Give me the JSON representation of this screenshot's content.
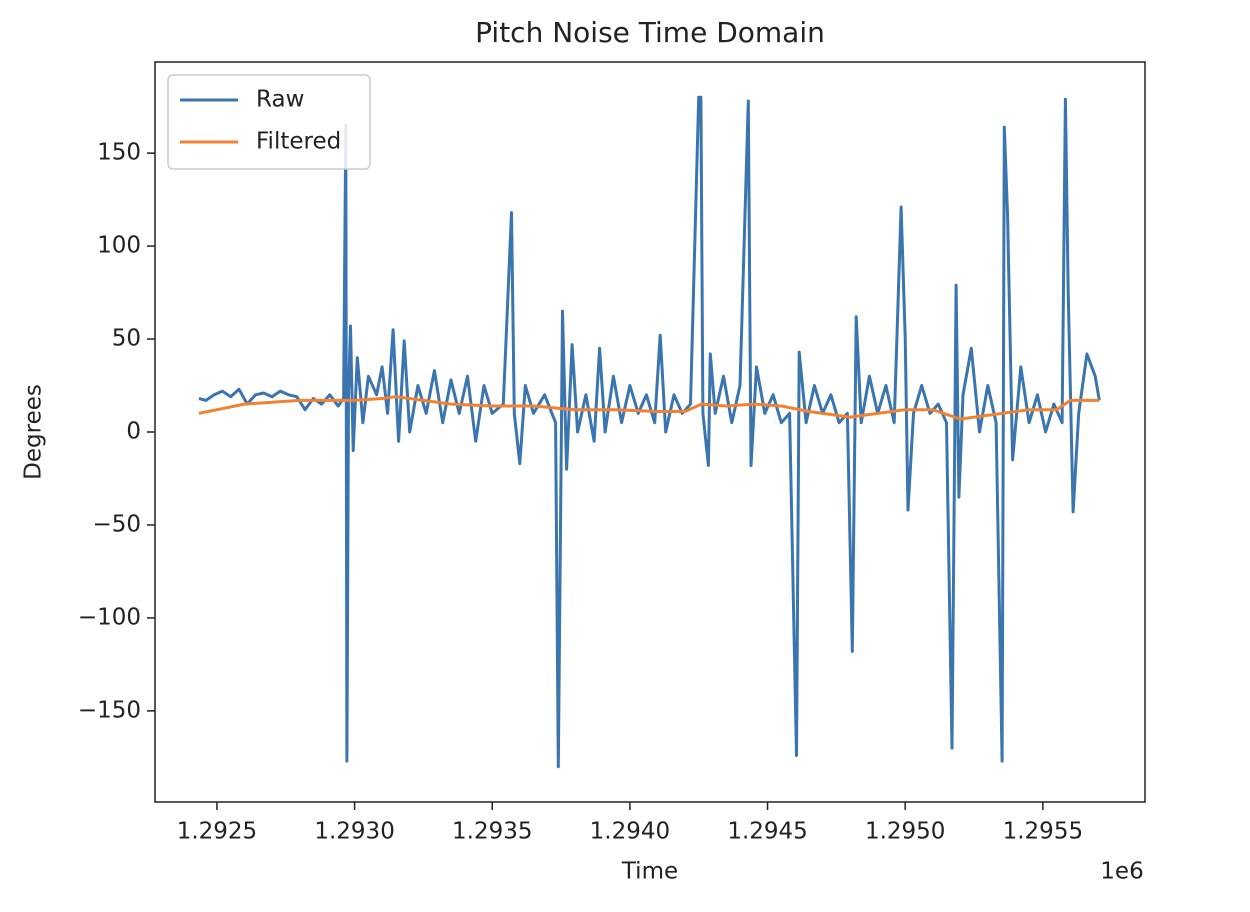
{
  "chart_data": {
    "type": "line",
    "title": "Pitch Noise Time Domain",
    "x_label": "Time",
    "y_label": "Degrees",
    "x_offset_label": "1e6",
    "xlim": [
      1292275,
      1295871
    ],
    "ylim": [
      -199,
      199
    ],
    "xticks": [
      {
        "value": 1292500,
        "label": "1.2925"
      },
      {
        "value": 1293000,
        "label": "1.2930"
      },
      {
        "value": 1293500,
        "label": "1.2935"
      },
      {
        "value": 1294000,
        "label": "1.2940"
      },
      {
        "value": 1294500,
        "label": "1.2945"
      },
      {
        "value": 1295000,
        "label": "1.2950"
      },
      {
        "value": 1295500,
        "label": "1.2955"
      }
    ],
    "yticks": [
      {
        "value": -150,
        "label": "−150"
      },
      {
        "value": -100,
        "label": "−100"
      },
      {
        "value": -50,
        "label": "−50"
      },
      0,
      50,
      100,
      150
    ],
    "legend": "upper left",
    "series": [
      {
        "name": "Raw",
        "color": "#3a75b0",
        "x": [
          1292435,
          1292460,
          1292490,
          1292520,
          1292550,
          1292580,
          1292610,
          1292640,
          1292670,
          1292700,
          1292730,
          1292760,
          1292790,
          1292820,
          1292850,
          1292880,
          1292910,
          1292940,
          1292960,
          1292968,
          1292972,
          1292978,
          1292985,
          1292995,
          1293010,
          1293030,
          1293050,
          1293080,
          1293100,
          1293120,
          1293140,
          1293160,
          1293180,
          1293200,
          1293230,
          1293260,
          1293290,
          1293320,
          1293350,
          1293380,
          1293410,
          1293440,
          1293470,
          1293500,
          1293540,
          1293570,
          1293580,
          1293600,
          1293620,
          1293650,
          1293690,
          1293730,
          1293740,
          1293755,
          1293770,
          1293790,
          1293810,
          1293840,
          1293870,
          1293890,
          1293910,
          1293940,
          1293970,
          1294000,
          1294030,
          1294060,
          1294090,
          1294110,
          1294130,
          1294160,
          1294190,
          1294220,
          1294250,
          1294258,
          1294265,
          1294285,
          1294292,
          1294310,
          1294340,
          1294370,
          1294400,
          1294430,
          1294440,
          1294460,
          1294490,
          1294520,
          1294550,
          1294580,
          1294605,
          1294615,
          1294640,
          1294670,
          1294700,
          1294730,
          1294760,
          1294790,
          1294808,
          1294822,
          1294840,
          1294870,
          1294900,
          1294930,
          1294960,
          1294985,
          1295000,
          1295010,
          1295030,
          1295060,
          1295090,
          1295120,
          1295150,
          1295170,
          1295185,
          1295195,
          1295210,
          1295240,
          1295270,
          1295300,
          1295330,
          1295352,
          1295360,
          1295372,
          1295390,
          1295420,
          1295450,
          1295480,
          1295510,
          1295540,
          1295570,
          1295582,
          1295592,
          1295610,
          1295630,
          1295660,
          1295690,
          1295705
        ],
        "values": [
          18,
          17,
          20,
          22,
          19,
          23,
          15,
          20,
          21,
          19,
          22,
          20,
          19,
          12,
          18,
          15,
          20,
          14,
          18,
          165,
          -177,
          20,
          57,
          -10,
          40,
          5,
          30,
          20,
          35,
          10,
          55,
          -5,
          49,
          0,
          25,
          10,
          33,
          5,
          28,
          10,
          30,
          -5,
          25,
          10,
          15,
          118,
          10,
          -17,
          25,
          10,
          20,
          5,
          -180,
          65,
          -20,
          47,
          0,
          20,
          -5,
          45,
          0,
          30,
          5,
          25,
          10,
          20,
          5,
          52,
          0,
          20,
          10,
          15,
          180,
          180,
          10,
          -18,
          42,
          10,
          30,
          5,
          25,
          178,
          -18,
          35,
          10,
          20,
          5,
          10,
          -174,
          43,
          5,
          25,
          10,
          20,
          5,
          10,
          -118,
          62,
          5,
          30,
          10,
          25,
          5,
          121,
          51,
          -42,
          10,
          25,
          10,
          15,
          5,
          -170,
          79,
          -35,
          20,
          45,
          0,
          25,
          5,
          -177,
          164,
          116,
          -15,
          35,
          5,
          20,
          0,
          15,
          5,
          179,
          75,
          -43,
          10,
          42,
          30,
          17
        ]
      },
      {
        "name": "Filtered",
        "color": "#f28130",
        "x": [
          1292435,
          1292500,
          1292600,
          1292700,
          1292800,
          1292900,
          1293000,
          1293100,
          1293150,
          1293250,
          1293350,
          1293500,
          1293650,
          1293800,
          1293950,
          1294100,
          1294200,
          1294260,
          1294350,
          1294450,
          1294550,
          1294650,
          1294800,
          1294900,
          1295000,
          1295100,
          1295200,
          1295300,
          1295450,
          1295550,
          1295600,
          1295705
        ],
        "values": [
          10,
          12,
          15,
          16,
          17,
          17,
          17,
          18,
          19,
          17,
          15,
          14,
          14,
          12,
          12,
          11,
          11,
          15,
          14,
          15,
          14,
          11,
          8,
          10,
          12,
          12,
          7,
          9,
          12,
          12,
          17,
          17
        ]
      }
    ]
  }
}
